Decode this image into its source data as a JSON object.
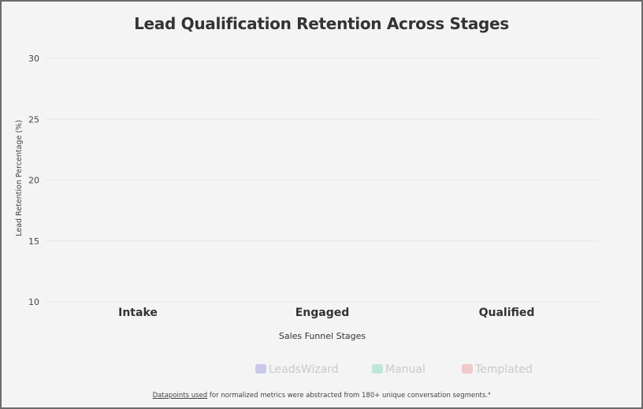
{
  "chart_data": {
    "type": "bar",
    "title": "Lead Qualification Retention Across Stages",
    "xlabel": "Sales Funnel Stages",
    "ylabel": "Lead Retention Percentage (%)",
    "categories": [
      "Intake",
      "Engaged",
      "Qualified"
    ],
    "ylim": [
      10,
      30
    ],
    "yticks": [
      10,
      15,
      20,
      25,
      30
    ],
    "grid": true,
    "legend_position": "bottom",
    "series": [
      {
        "name": "LeadsWizard",
        "color": "#c8c8e8",
        "values": [
          null,
          null,
          null
        ]
      },
      {
        "name": "Manual",
        "color": "#bfe6d6",
        "values": [
          null,
          null,
          null
        ]
      },
      {
        "name": "Templated",
        "color": "#efc9cc",
        "values": [
          null,
          null,
          null
        ]
      }
    ]
  },
  "footer": {
    "link_text": "Datapoints used",
    "text": " for normalized metrics were abstracted from 180+ unique conversation segments.⁴"
  }
}
